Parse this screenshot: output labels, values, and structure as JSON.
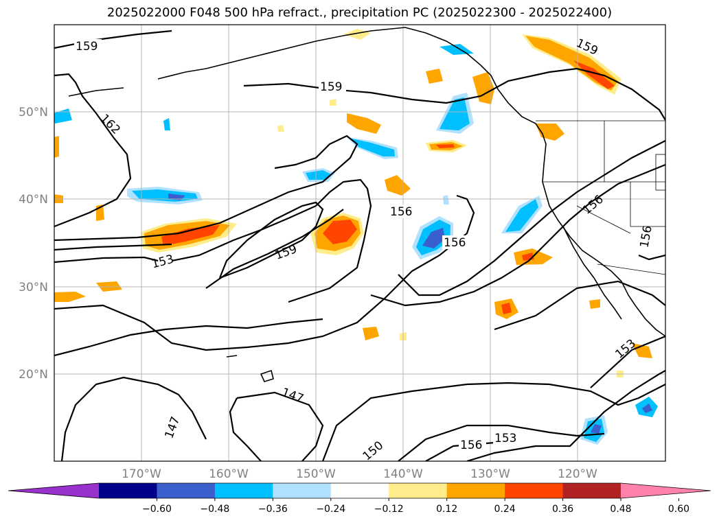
{
  "title": "2025022000 F048 500 hPa refract., precipitation PC (2025022300 - 2025022400)",
  "lat_labels": [
    "50°N",
    "40°N",
    "30°N",
    "20°N"
  ],
  "lon_labels": [
    "170°W",
    "160°W",
    "150°W",
    "140°W",
    "130°W",
    "120°W"
  ],
  "contour_labels": [
    "159",
    "162",
    "159",
    "159",
    "156",
    "156",
    "153",
    "159",
    "156",
    "156",
    "153",
    "147",
    "147",
    "150",
    "156",
    "153"
  ],
  "colorbar": {
    "ticks": [
      "−0.60",
      "−0.48",
      "−0.36",
      "−0.24",
      "−0.12",
      "0.12",
      "0.24",
      "0.36",
      "0.48",
      "0.60"
    ],
    "colors": [
      "#9932cc",
      "#00008b",
      "#3a5fcd",
      "#00bfff",
      "#b0e2ff",
      "#ffffff",
      "#ffec8b",
      "#ffa500",
      "#ff4500",
      "#b22222",
      "#ff82ab"
    ]
  }
}
